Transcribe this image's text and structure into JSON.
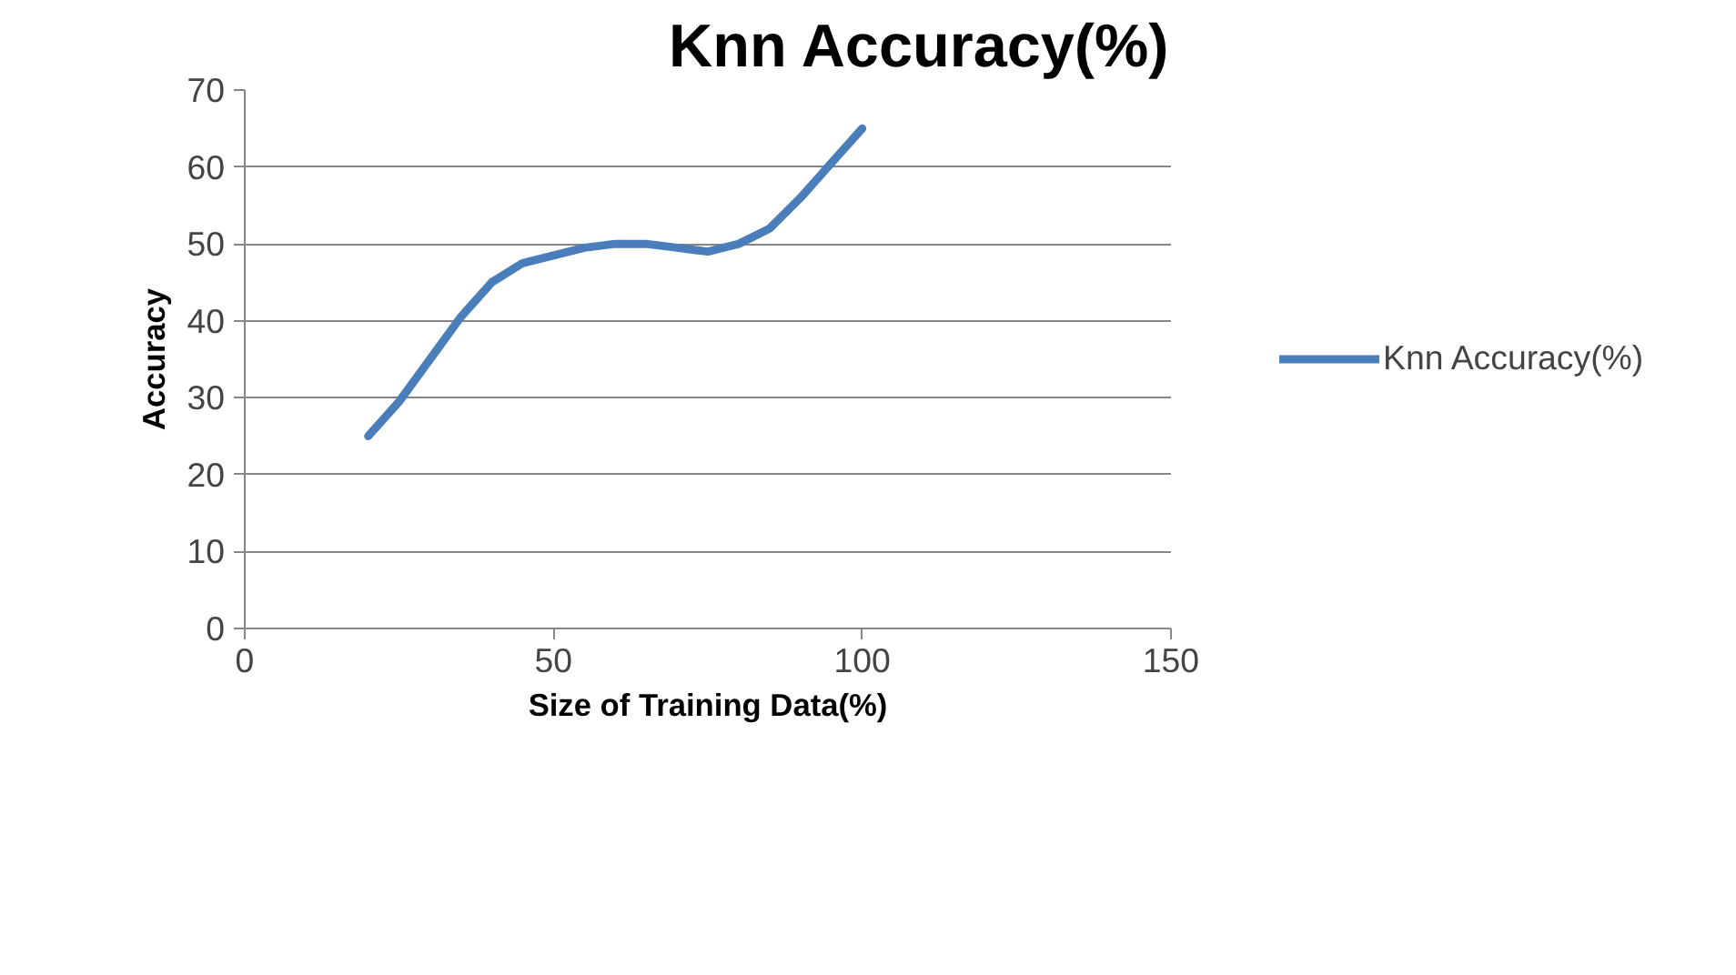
{
  "chart_data": {
    "type": "line",
    "title": "Knn Accuracy(%)",
    "xlabel": "Size of Training Data(%)",
    "ylabel": "Accuracy",
    "x": [
      20,
      25,
      30,
      35,
      40,
      45,
      50,
      55,
      60,
      65,
      70,
      75,
      80,
      85,
      90,
      95,
      100
    ],
    "series": [
      {
        "name": "Knn Accuracy(%)",
        "color": "#4a7ebb",
        "values": [
          25,
          29.5,
          35,
          40.5,
          45,
          47.5,
          48.5,
          49.5,
          50,
          50,
          49.5,
          49,
          50,
          52,
          56,
          60.5,
          65
        ]
      }
    ],
    "xlim": [
      0,
      150
    ],
    "xticks": [
      0,
      50,
      100,
      150
    ],
    "ylim": [
      0,
      70
    ],
    "yticks": [
      0,
      10,
      20,
      30,
      40,
      50,
      60,
      70
    ],
    "grid": "y",
    "legend": "right",
    "marker": "none",
    "line_style": "solid"
  }
}
